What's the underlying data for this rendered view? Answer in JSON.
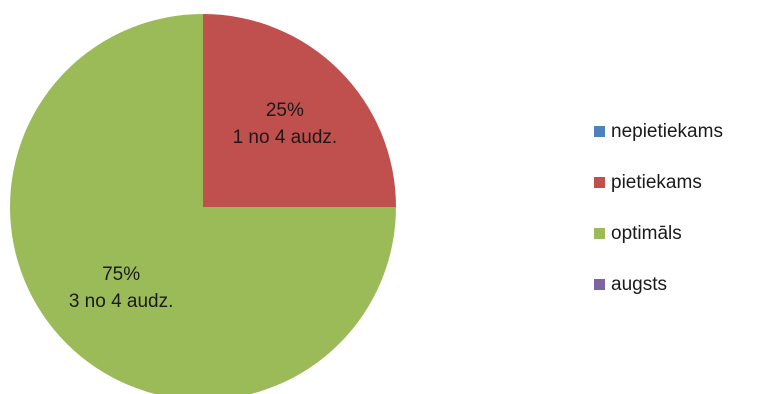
{
  "chart_data": {
    "type": "pie",
    "title": "",
    "categories": [
      "nepietiekams",
      "pietiekams",
      "optimāls",
      "augsts"
    ],
    "values": [
      0,
      25,
      75,
      0
    ],
    "colors": [
      "#4f81bd",
      "#c0504d",
      "#9bbb59",
      "#8064a2"
    ],
    "slice_labels": [
      {
        "category": "pietiekams",
        "percent": "25%",
        "count": "1 no 4 audz."
      },
      {
        "category": "optimāls",
        "percent": "75%",
        "count": "3 no 4 audz."
      }
    ],
    "legend_position": "right"
  }
}
